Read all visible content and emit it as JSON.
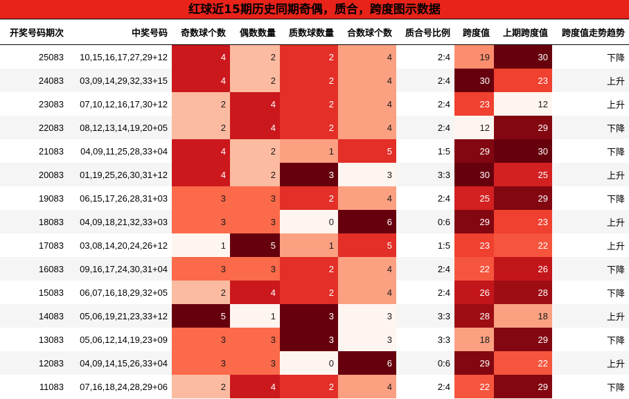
{
  "chart_data": {
    "type": "table",
    "title": "红球近15期历史同期奇偶，质合，跨度图示数据",
    "columns": [
      "开奖号码期次",
      "中奖号码",
      "奇数球个数",
      "偶数数量",
      "质数球数量",
      "合数球个数",
      "质合号比例",
      "跨度值",
      "上期跨度值",
      "跨度值走势趋势"
    ],
    "rows": [
      {
        "issue": "25083",
        "numbers": "10,15,16,17,27,29+12",
        "odd": 4,
        "even": 2,
        "prime": 2,
        "composite": 4,
        "ratio": "2:4",
        "span": 19,
        "prev_span": 30,
        "trend": "下降"
      },
      {
        "issue": "24083",
        "numbers": "03,09,14,29,32,33+15",
        "odd": 4,
        "even": 2,
        "prime": 2,
        "composite": 4,
        "ratio": "2:4",
        "span": 30,
        "prev_span": 23,
        "trend": "上升"
      },
      {
        "issue": "23083",
        "numbers": "07,10,12,16,17,30+12",
        "odd": 2,
        "even": 4,
        "prime": 2,
        "composite": 4,
        "ratio": "2:4",
        "span": 23,
        "prev_span": 12,
        "trend": "上升"
      },
      {
        "issue": "22083",
        "numbers": "08,12,13,14,19,20+05",
        "odd": 2,
        "even": 4,
        "prime": 2,
        "composite": 4,
        "ratio": "2:4",
        "span": 12,
        "prev_span": 29,
        "trend": "下降"
      },
      {
        "issue": "21083",
        "numbers": "04,09,11,25,28,33+04",
        "odd": 4,
        "even": 2,
        "prime": 1,
        "composite": 5,
        "ratio": "1:5",
        "span": 29,
        "prev_span": 30,
        "trend": "下降"
      },
      {
        "issue": "20083",
        "numbers": "01,19,25,26,30,31+12",
        "odd": 4,
        "even": 2,
        "prime": 3,
        "composite": 3,
        "ratio": "3:3",
        "span": 30,
        "prev_span": 25,
        "trend": "上升"
      },
      {
        "issue": "19083",
        "numbers": "06,15,17,26,28,31+03",
        "odd": 3,
        "even": 3,
        "prime": 2,
        "composite": 4,
        "ratio": "2:4",
        "span": 25,
        "prev_span": 29,
        "trend": "下降"
      },
      {
        "issue": "18083",
        "numbers": "04,09,18,21,32,33+03",
        "odd": 3,
        "even": 3,
        "prime": 0,
        "composite": 6,
        "ratio": "0:6",
        "span": 29,
        "prev_span": 23,
        "trend": "上升"
      },
      {
        "issue": "17083",
        "numbers": "03,08,14,20,24,26+12",
        "odd": 1,
        "even": 5,
        "prime": 1,
        "composite": 5,
        "ratio": "1:5",
        "span": 23,
        "prev_span": 22,
        "trend": "上升"
      },
      {
        "issue": "16083",
        "numbers": "09,16,17,24,30,31+04",
        "odd": 3,
        "even": 3,
        "prime": 2,
        "composite": 4,
        "ratio": "2:4",
        "span": 22,
        "prev_span": 26,
        "trend": "下降"
      },
      {
        "issue": "15083",
        "numbers": "06,07,16,18,29,32+05",
        "odd": 2,
        "even": 4,
        "prime": 2,
        "composite": 4,
        "ratio": "2:4",
        "span": 26,
        "prev_span": 28,
        "trend": "下降"
      },
      {
        "issue": "14083",
        "numbers": "05,06,19,21,23,33+12",
        "odd": 5,
        "even": 1,
        "prime": 3,
        "composite": 3,
        "ratio": "3:3",
        "span": 28,
        "prev_span": 18,
        "trend": "上升"
      },
      {
        "issue": "13083",
        "numbers": "05,06,12,14,19,23+09",
        "odd": 3,
        "even": 3,
        "prime": 3,
        "composite": 3,
        "ratio": "3:3",
        "span": 18,
        "prev_span": 29,
        "trend": "下降"
      },
      {
        "issue": "12083",
        "numbers": "04,09,14,15,26,33+04",
        "odd": 3,
        "even": 3,
        "prime": 0,
        "composite": 6,
        "ratio": "0:6",
        "span": 29,
        "prev_span": 22,
        "trend": "上升"
      },
      {
        "issue": "11083",
        "numbers": "07,16,18,24,28,29+06",
        "odd": 2,
        "even": 4,
        "prime": 2,
        "composite": 4,
        "ratio": "2:4",
        "span": 22,
        "prev_span": 29,
        "trend": "下降"
      }
    ]
  },
  "colors": {
    "title_bg": "#e8231a",
    "heat_low": "#fff5f0",
    "heat_high": "#67000d"
  }
}
